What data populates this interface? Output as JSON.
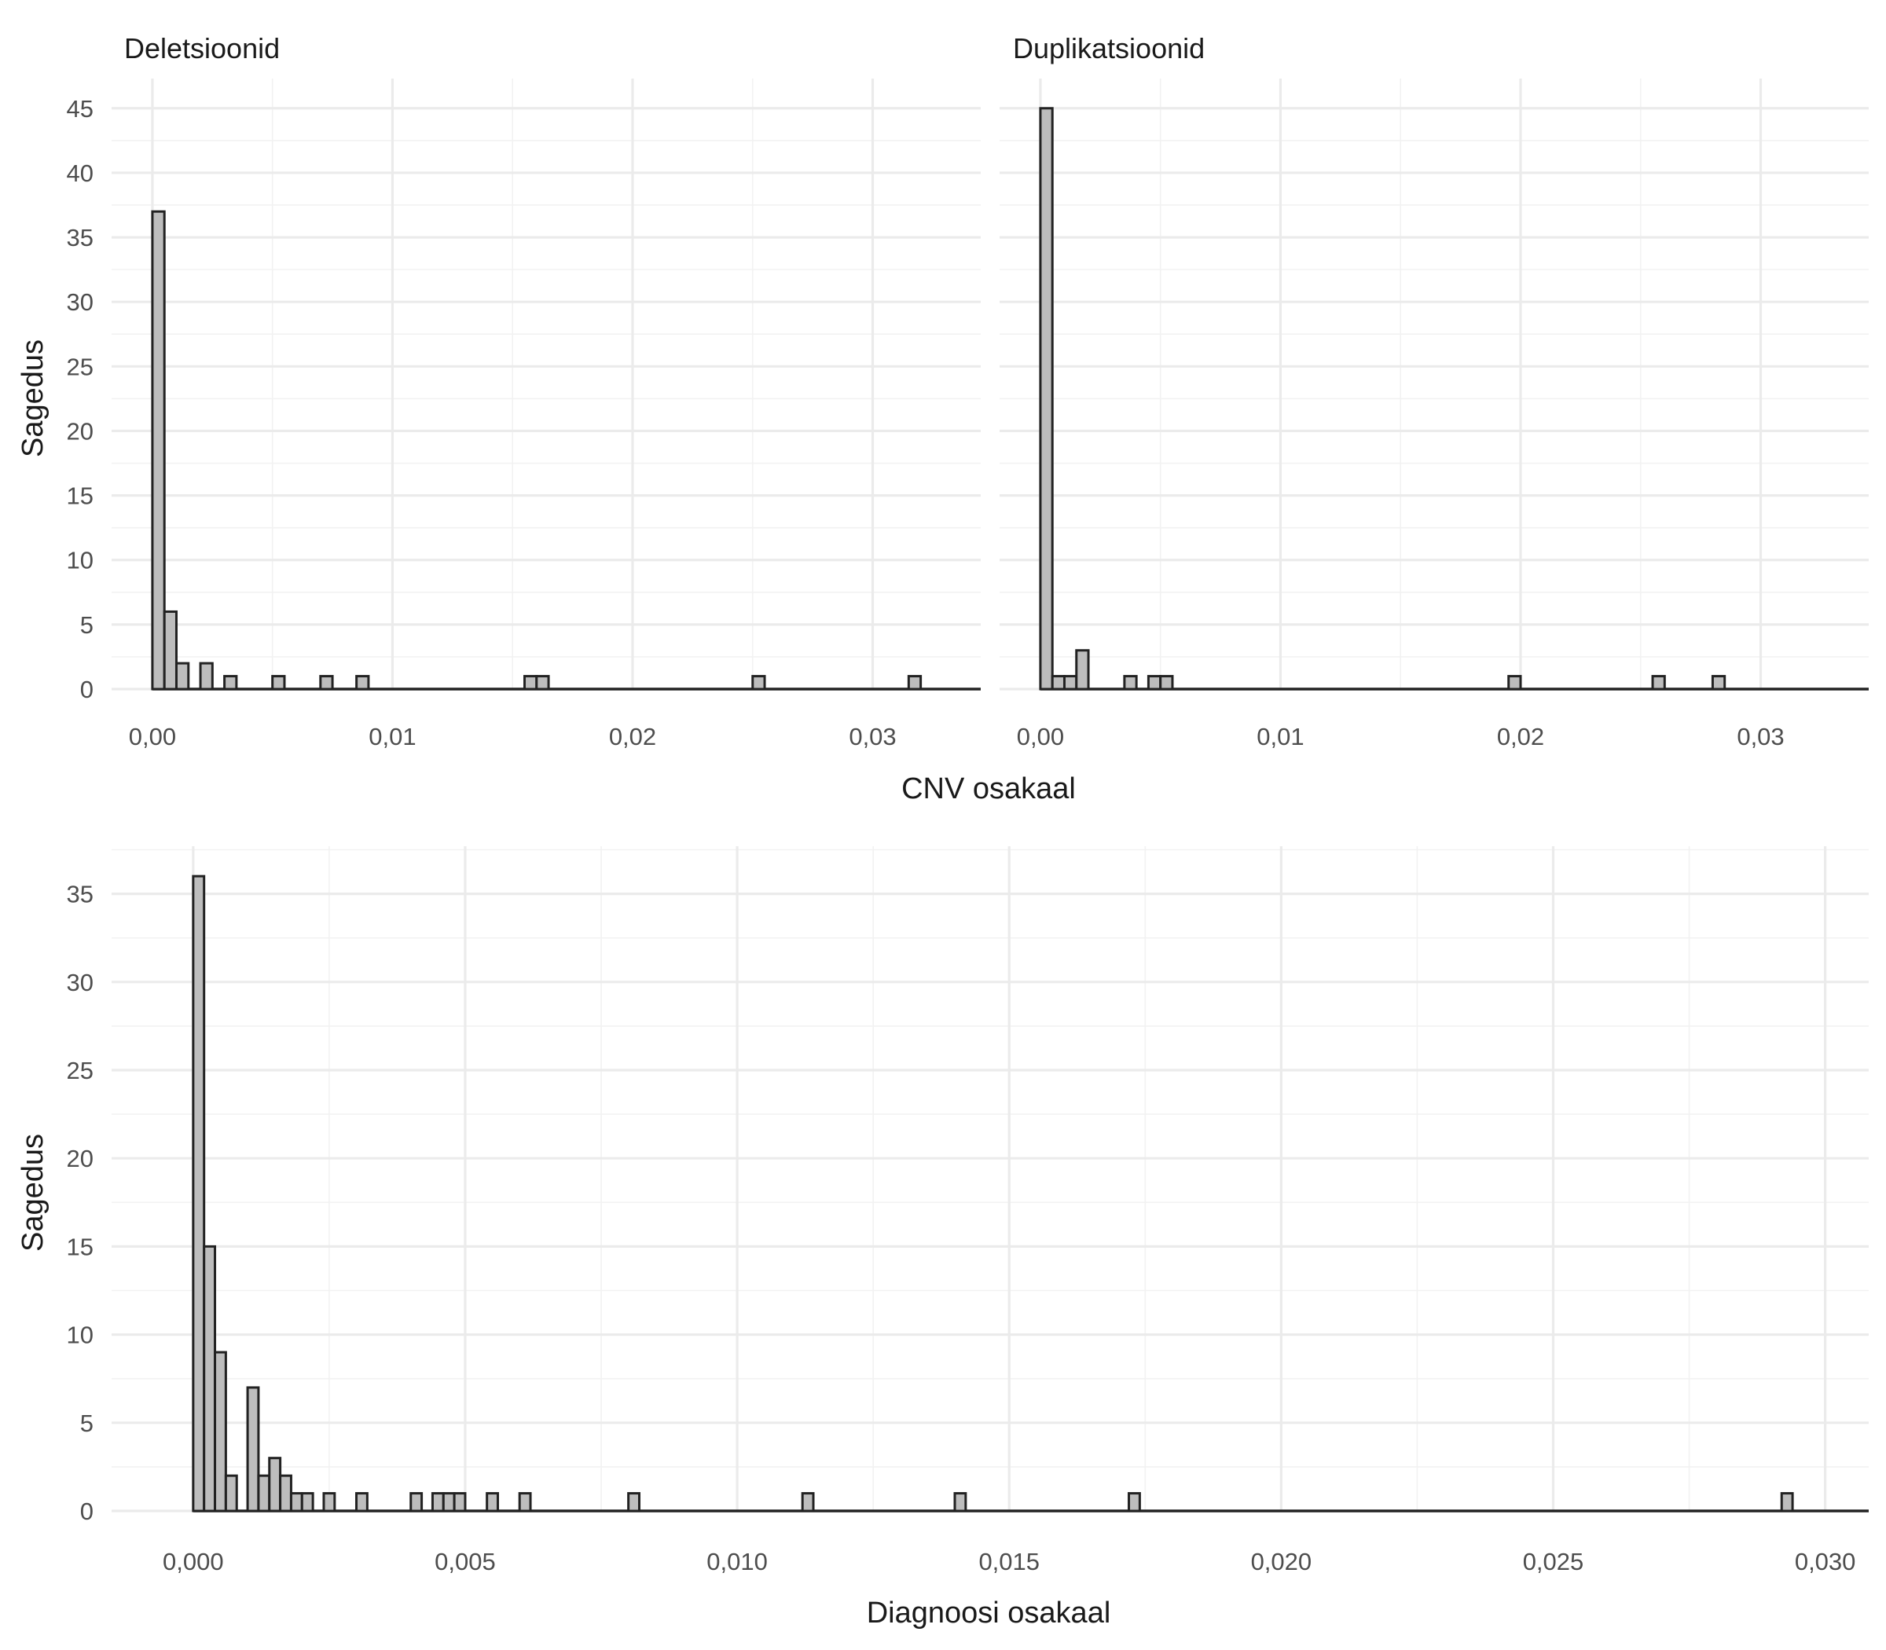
{
  "chart_data": [
    {
      "type": "bar",
      "title": "Deletsioonid",
      "xlabel": "CNV osakaal",
      "ylabel": "Sagedus",
      "xlim": [
        -0.0017,
        0.0345
      ],
      "ylim": [
        0,
        47.3
      ],
      "binwidth": 0.0005,
      "xticks": [
        0,
        0.01,
        0.02,
        0.03
      ],
      "xtick_labels": [
        "0,00",
        "0,01",
        "0,02",
        "0,03"
      ],
      "yticks": [
        0,
        5,
        10,
        15,
        20,
        25,
        30,
        35,
        40,
        45
      ],
      "ytick_labels": [
        "0",
        "5",
        "10",
        "15",
        "20",
        "25",
        "30",
        "35",
        "40",
        "45"
      ],
      "bins": [
        {
          "x": 0.00025,
          "count": 37
        },
        {
          "x": 0.00075,
          "count": 6
        },
        {
          "x": 0.00125,
          "count": 2
        },
        {
          "x": 0.00225,
          "count": 2
        },
        {
          "x": 0.00325,
          "count": 1
        },
        {
          "x": 0.00525,
          "count": 1
        },
        {
          "x": 0.00725,
          "count": 1
        },
        {
          "x": 0.00875,
          "count": 1
        },
        {
          "x": 0.01575,
          "count": 1
        },
        {
          "x": 0.01625,
          "count": 1
        },
        {
          "x": 0.02525,
          "count": 1
        },
        {
          "x": 0.03175,
          "count": 1
        }
      ]
    },
    {
      "type": "bar",
      "title": "Duplikatsioonid",
      "xlabel": "CNV osakaal",
      "ylabel": "Sagedus",
      "xlim": [
        -0.0017,
        0.0345
      ],
      "ylim": [
        0,
        47.3
      ],
      "binwidth": 0.0005,
      "xticks": [
        0,
        0.01,
        0.02,
        0.03
      ],
      "xtick_labels": [
        "0,00",
        "0,01",
        "0,02",
        "0,03"
      ],
      "yticks": [
        0,
        5,
        10,
        15,
        20,
        25,
        30,
        35,
        40,
        45
      ],
      "ytick_labels": [
        "0",
        "5",
        "10",
        "15",
        "20",
        "25",
        "30",
        "35",
        "40",
        "45"
      ],
      "bins": [
        {
          "x": 0.00025,
          "count": 45
        },
        {
          "x": 0.00075,
          "count": 1
        },
        {
          "x": 0.00125,
          "count": 1
        },
        {
          "x": 0.00175,
          "count": 3
        },
        {
          "x": 0.00375,
          "count": 1
        },
        {
          "x": 0.00475,
          "count": 1
        },
        {
          "x": 0.00525,
          "count": 1
        },
        {
          "x": 0.01975,
          "count": 1
        },
        {
          "x": 0.02575,
          "count": 1
        },
        {
          "x": 0.02825,
          "count": 1
        }
      ]
    },
    {
      "type": "bar",
      "title": "",
      "xlabel": "Diagnoosi osakaal",
      "ylabel": "Sagedus",
      "xlim": [
        -0.0015,
        0.0308
      ],
      "ylim": [
        0,
        37.7
      ],
      "binwidth": 0.0002,
      "xticks": [
        0,
        0.005,
        0.01,
        0.015,
        0.02,
        0.025,
        0.03
      ],
      "xtick_labels": [
        "0,000",
        "0,005",
        "0,010",
        "0,015",
        "0,020",
        "0,025",
        "0,030"
      ],
      "yticks": [
        0,
        5,
        10,
        15,
        20,
        25,
        30,
        35
      ],
      "ytick_labels": [
        "0",
        "5",
        "10",
        "15",
        "20",
        "25",
        "30",
        "35"
      ],
      "bins": [
        {
          "x": 0.0001,
          "count": 36
        },
        {
          "x": 0.0003,
          "count": 15
        },
        {
          "x": 0.0005,
          "count": 9
        },
        {
          "x": 0.0007,
          "count": 2
        },
        {
          "x": 0.0011,
          "count": 7
        },
        {
          "x": 0.0013,
          "count": 2
        },
        {
          "x": 0.0015,
          "count": 3
        },
        {
          "x": 0.0017,
          "count": 2
        },
        {
          "x": 0.0019,
          "count": 1
        },
        {
          "x": 0.0021,
          "count": 1
        },
        {
          "x": 0.0025,
          "count": 1
        },
        {
          "x": 0.0031,
          "count": 1
        },
        {
          "x": 0.0041,
          "count": 1
        },
        {
          "x": 0.0045,
          "count": 1
        },
        {
          "x": 0.0047,
          "count": 1
        },
        {
          "x": 0.0049,
          "count": 1
        },
        {
          "x": 0.0055,
          "count": 1
        },
        {
          "x": 0.0061,
          "count": 1
        },
        {
          "x": 0.0081,
          "count": 1
        },
        {
          "x": 0.0113,
          "count": 1
        },
        {
          "x": 0.0141,
          "count": 1
        },
        {
          "x": 0.0173,
          "count": 1
        },
        {
          "x": 0.0293,
          "count": 1
        }
      ]
    }
  ]
}
